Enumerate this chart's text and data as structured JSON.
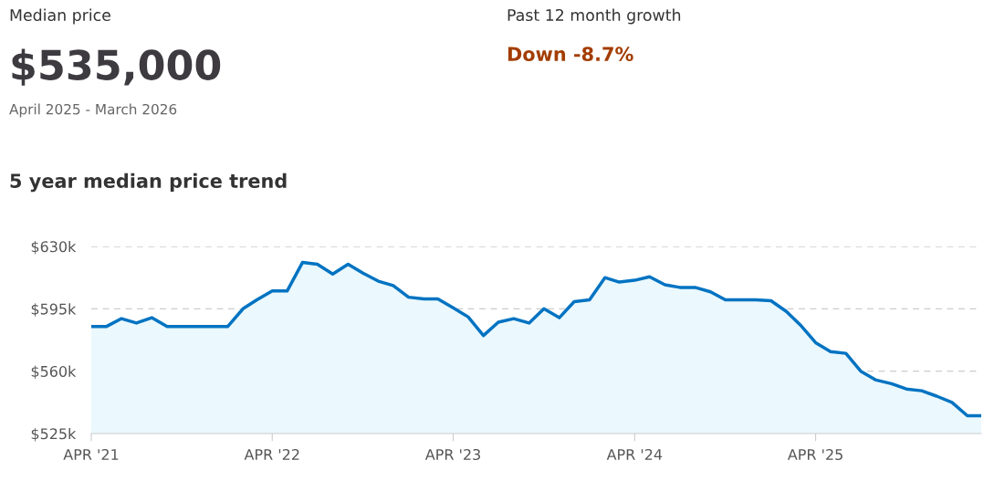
{
  "chart_data": {
    "type": "area",
    "title": "5 year median price trend",
    "annotations": [
      "Median price",
      "$535,000",
      "April 2025 - March 2026",
      "Past 12 month growth",
      "Down -8.7%"
    ],
    "x": [
      "2021-04",
      "2021-05",
      "2021-06",
      "2021-07",
      "2021-08",
      "2021-09",
      "2021-10",
      "2021-11",
      "2021-12",
      "2022-01",
      "2022-02",
      "2022-03",
      "2022-04",
      "2022-05",
      "2022-06",
      "2022-07",
      "2022-08",
      "2022-09",
      "2022-10",
      "2022-11",
      "2022-12",
      "2023-01",
      "2023-02",
      "2023-03",
      "2023-04",
      "2023-05",
      "2023-06",
      "2023-07",
      "2023-08",
      "2023-09",
      "2023-10",
      "2023-11",
      "2023-12",
      "2024-01",
      "2024-02",
      "2024-03",
      "2024-04",
      "2024-05",
      "2024-06",
      "2024-07",
      "2024-08",
      "2024-09",
      "2024-10",
      "2024-11",
      "2024-12",
      "2025-01",
      "2025-02",
      "2025-03",
      "2025-04",
      "2025-05",
      "2025-06",
      "2025-07",
      "2025-08",
      "2025-09",
      "2025-10",
      "2025-11",
      "2025-12",
      "2026-01",
      "2026-02",
      "2026-03"
    ],
    "series": [
      {
        "color": "#0073c2",
        "values": [
          585,
          585,
          589.5,
          587,
          590,
          585,
          585,
          585,
          585,
          585,
          595,
          600,
          605,
          605,
          621,
          620,
          614.5,
          620,
          615,
          610.5,
          608,
          601.5,
          600.5,
          600.5,
          595.5,
          590.5,
          580,
          587.5,
          589.5,
          587,
          595,
          590,
          599,
          600,
          612.5,
          610,
          611,
          613,
          608.5,
          607,
          607,
          604.5,
          600,
          600,
          600,
          599.5,
          593.5,
          586,
          576,
          571,
          570,
          560,
          555,
          553,
          550,
          549,
          546,
          542.5,
          535,
          535
        ]
      }
    ],
    "xlim": [
      "2021-04",
      "2026-03"
    ],
    "xticks": [
      {
        "value": "2021-04",
        "label": "APR '21"
      },
      {
        "value": "2022-04",
        "label": "APR '22"
      },
      {
        "value": "2023-04",
        "label": "APR '23"
      },
      {
        "value": "2024-04",
        "label": "APR '24"
      },
      {
        "value": "2025-04",
        "label": "APR '25"
      }
    ],
    "ylim": [
      525,
      630
    ],
    "yticks": [
      {
        "value": 525,
        "label": "$525k"
      },
      {
        "value": 560,
        "label": "$560k"
      },
      {
        "value": 595,
        "label": "$595k"
      },
      {
        "value": 630,
        "label": "$630k"
      }
    ],
    "grid": "y",
    "legend": false,
    "marker": "none",
    "line_style": "solid"
  }
}
